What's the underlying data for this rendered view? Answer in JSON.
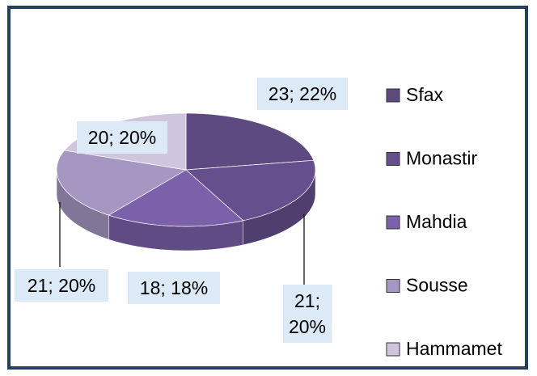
{
  "chart_data": {
    "type": "pie",
    "categories": [
      "Sfax",
      "Monastir",
      "Mahdia",
      "Sousse",
      "Hammamet"
    ],
    "values": [
      23,
      21,
      18,
      21,
      20
    ],
    "value_labels": [
      "23; 22%",
      "21; 20%",
      "18; 18%",
      "21; 20%",
      "20; 20%"
    ],
    "colors": [
      "#5d4a80",
      "#65508d",
      "#7b60aa",
      "#a597c2",
      "#cfc6de"
    ],
    "legend": "right"
  }
}
